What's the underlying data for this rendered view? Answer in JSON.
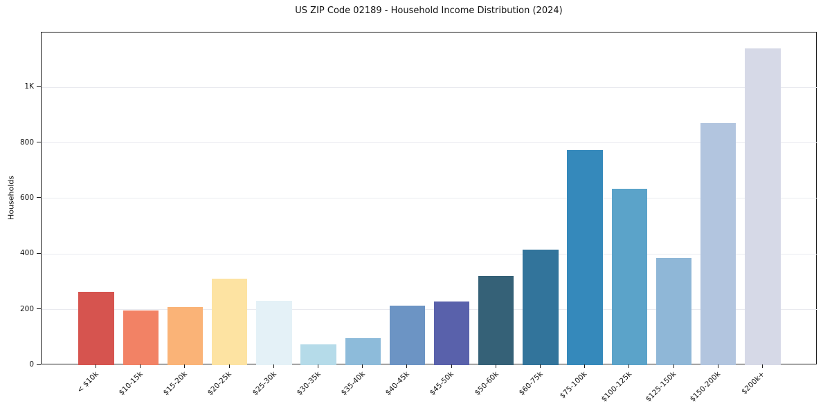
{
  "chart_data": {
    "type": "bar",
    "title": "US ZIP Code 02189 - Household Income Distribution (2024)",
    "xlabel": "",
    "ylabel": "Households",
    "ylim": [
      0,
      1197
    ],
    "grid": "horizontal-only",
    "legend": "none",
    "categories": [
      "< $10k",
      "$10-15k",
      "$15-20k",
      "$20-25k",
      "$25-30k",
      "$30-35k",
      "$35-40k",
      "$40-45k",
      "$45-50k",
      "$50-60k",
      "$60-75k",
      "$75-100k",
      "$100-125k",
      "$125-150k",
      "$150-200k",
      "$200k+"
    ],
    "values": [
      265,
      197,
      210,
      312,
      232,
      74,
      98,
      215,
      228,
      322,
      416,
      773,
      634,
      385,
      870,
      1140
    ],
    "bar_colors": [
      "#d6544f",
      "#f28265",
      "#fab377",
      "#fde3a2",
      "#e4f1f7",
      "#b5dbe9",
      "#8dbbda",
      "#6c94c4",
      "#5961ab",
      "#356177",
      "#32749b",
      "#3589bb",
      "#5ba3c9",
      "#8fb7d7",
      "#b2c5df",
      "#d6d9e7"
    ],
    "yticks": [
      {
        "value": 0,
        "label": "0"
      },
      {
        "value": 200,
        "label": "200"
      },
      {
        "value": 400,
        "label": "400"
      },
      {
        "value": 600,
        "label": "600"
      },
      {
        "value": 800,
        "label": "800"
      },
      {
        "value": 1000,
        "label": "1K"
      }
    ],
    "colors": {
      "background": "#ffffff",
      "grid": "#e9eaef",
      "axis": "#1a1a1a",
      "text": "#111111"
    }
  }
}
